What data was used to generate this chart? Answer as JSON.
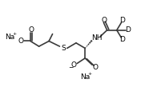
{
  "bg_color": "#ffffff",
  "line_color": "#3a3a3a",
  "lw": 1.2,
  "fontsize": 6.5,
  "figsize": [
    1.81,
    1.19
  ],
  "dpi": 100,
  "xlim": [
    0,
    10
  ],
  "ylim": [
    0,
    6.6
  ]
}
